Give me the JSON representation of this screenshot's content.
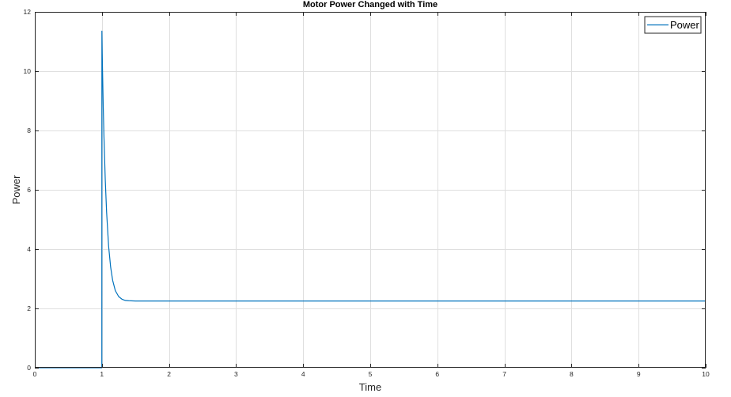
{
  "chart_data": {
    "type": "line",
    "title": "Motor Power Changed with Time",
    "xlabel": "Time",
    "ylabel": "Power",
    "xlim": [
      0,
      10
    ],
    "ylim": [
      0,
      12
    ],
    "x_ticks": [
      0,
      1,
      2,
      3,
      4,
      5,
      6,
      7,
      8,
      9,
      10
    ],
    "y_ticks": [
      0,
      2,
      4,
      6,
      8,
      10,
      12
    ],
    "grid": true,
    "legend_position": "top-right",
    "series": [
      {
        "name": "Power",
        "color": "#0072bd",
        "x": [
          0,
          0.999,
          1.0,
          1.005,
          1.01,
          1.02,
          1.03,
          1.05,
          1.07,
          1.1,
          1.13,
          1.16,
          1.2,
          1.25,
          1.3,
          1.35,
          1.4,
          1.5,
          1.6,
          1.8,
          2.0,
          3,
          4,
          5,
          6,
          7,
          8,
          9,
          10
        ],
        "y": [
          0,
          0,
          11.35,
          10.6,
          9.95,
          8.8,
          7.85,
          6.35,
          5.25,
          4.1,
          3.4,
          2.95,
          2.6,
          2.4,
          2.31,
          2.27,
          2.26,
          2.25,
          2.25,
          2.25,
          2.25,
          2.25,
          2.25,
          2.25,
          2.25,
          2.25,
          2.25,
          2.25,
          2.25
        ]
      }
    ]
  }
}
